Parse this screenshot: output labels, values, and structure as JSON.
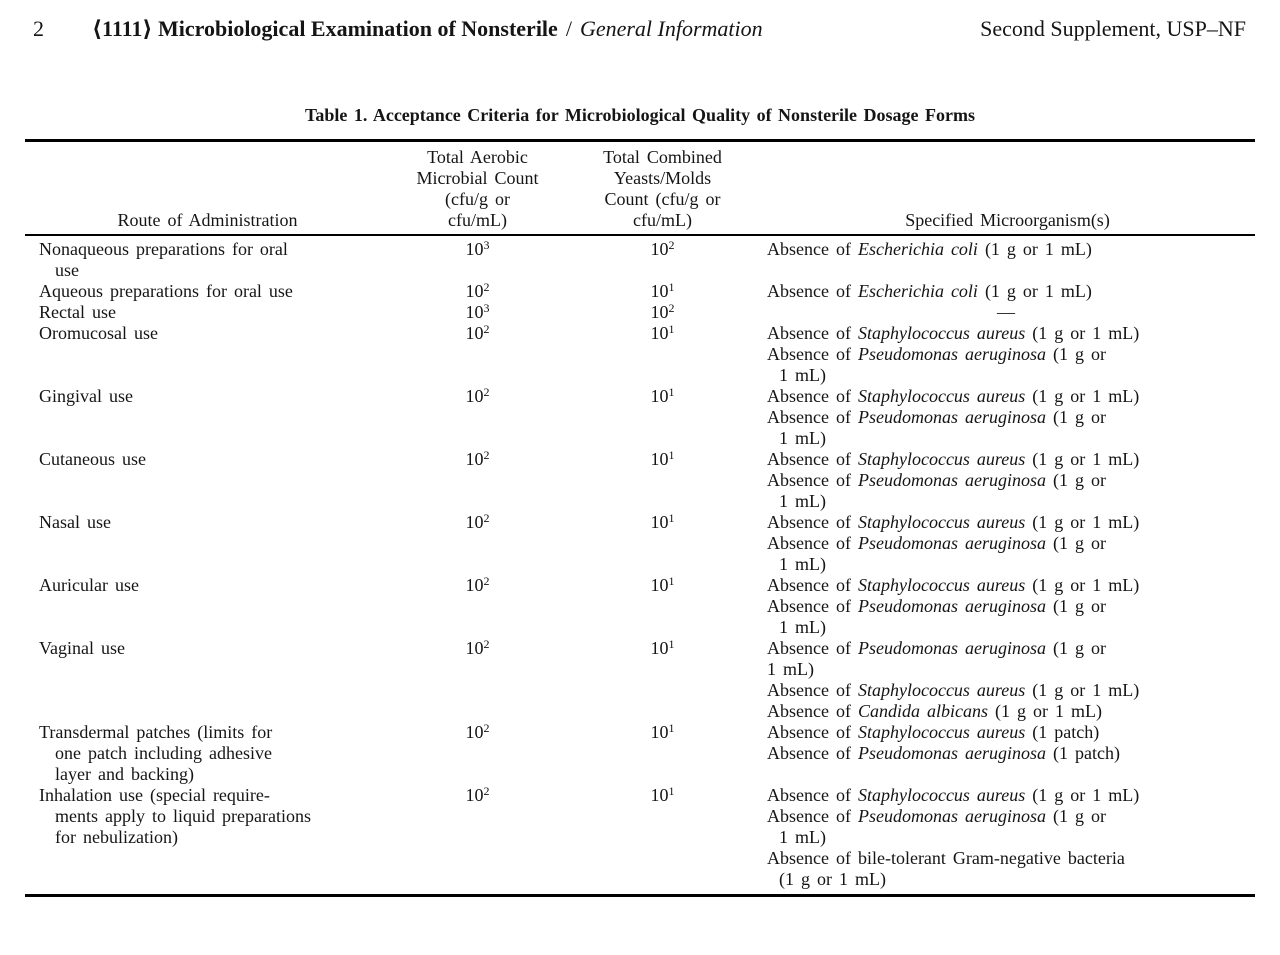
{
  "page_header": {
    "page_number": "2",
    "chapter_title": "⟨1111⟩ Microbiological Examination of Nonsterile",
    "separator": "/",
    "section": "General Information",
    "edition": "Second Supplement, USP–NF"
  },
  "table": {
    "title": "Table 1. Acceptance Criteria for Microbiological Quality of Nonsterile Dosage Forms",
    "columns": {
      "route": {
        "header_lines": [
          "Route of Administration"
        ]
      },
      "tamc": {
        "header_lines": [
          "Total Aerobic",
          "Microbial Count",
          "(cfu/g or",
          "cfu/mL)"
        ]
      },
      "tymc": {
        "header_lines": [
          "Total Combined",
          "Yeasts/Molds",
          "Count (cfu/g or",
          "cfu/mL)"
        ]
      },
      "organisms": {
        "header_lines": [
          "Specified Microorganism(s)"
        ]
      }
    },
    "rows": [
      {
        "route_lines": [
          "Nonaqueous preparations for oral",
          "use"
        ],
        "tamc": {
          "base": "10",
          "exp": "3"
        },
        "tymc": {
          "base": "10",
          "exp": "2"
        },
        "organism_lines": [
          {
            "indent": 0,
            "segments": [
              {
                "text": "Absence of "
              },
              {
                "text": "Escherichia coli",
                "italic": true
              },
              {
                "text": " (1 g or 1 mL)"
              }
            ]
          }
        ]
      },
      {
        "route_lines": [
          "Aqueous preparations for oral use"
        ],
        "tamc": {
          "base": "10",
          "exp": "2"
        },
        "tymc": {
          "base": "10",
          "exp": "1"
        },
        "organism_lines": [
          {
            "indent": 0,
            "segments": [
              {
                "text": "Absence of "
              },
              {
                "text": "Escherichia coli",
                "italic": true
              },
              {
                "text": " (1 g or 1 mL)"
              }
            ]
          }
        ]
      },
      {
        "route_lines": [
          "Rectal use"
        ],
        "tamc": {
          "base": "10",
          "exp": "3"
        },
        "tymc": {
          "base": "10",
          "exp": "2"
        },
        "organism_lines": [
          {
            "indent": 0,
            "center": true,
            "segments": [
              {
                "text": "—"
              }
            ]
          }
        ]
      },
      {
        "route_lines": [
          "Oromucosal use"
        ],
        "tamc": {
          "base": "10",
          "exp": "2"
        },
        "tymc": {
          "base": "10",
          "exp": "1"
        },
        "organism_lines": [
          {
            "indent": 0,
            "segments": [
              {
                "text": "Absence of "
              },
              {
                "text": "Staphylococcus aureus",
                "italic": true
              },
              {
                "text": " (1 g or 1 mL)"
              }
            ]
          },
          {
            "indent": 0,
            "segments": [
              {
                "text": "Absence of "
              },
              {
                "text": "Pseudomonas aeruginosa",
                "italic": true
              },
              {
                "text": " (1 g or"
              }
            ]
          },
          {
            "indent": 1,
            "segments": [
              {
                "text": "1 mL)"
              }
            ]
          }
        ]
      },
      {
        "route_lines": [
          "Gingival use"
        ],
        "tamc": {
          "base": "10",
          "exp": "2"
        },
        "tymc": {
          "base": "10",
          "exp": "1"
        },
        "organism_lines": [
          {
            "indent": 0,
            "segments": [
              {
                "text": "Absence of "
              },
              {
                "text": "Staphylococcus aureus",
                "italic": true
              },
              {
                "text": " (1 g or 1 mL)"
              }
            ]
          },
          {
            "indent": 0,
            "segments": [
              {
                "text": "Absence of "
              },
              {
                "text": "Pseudomonas aeruginosa",
                "italic": true
              },
              {
                "text": " (1 g or"
              }
            ]
          },
          {
            "indent": 1,
            "segments": [
              {
                "text": "1 mL)"
              }
            ]
          }
        ]
      },
      {
        "route_lines": [
          "Cutaneous use"
        ],
        "tamc": {
          "base": "10",
          "exp": "2"
        },
        "tymc": {
          "base": "10",
          "exp": "1"
        },
        "organism_lines": [
          {
            "indent": 0,
            "segments": [
              {
                "text": "Absence of "
              },
              {
                "text": "Staphylococcus aureus",
                "italic": true
              },
              {
                "text": " (1 g or 1 mL)"
              }
            ]
          },
          {
            "indent": 0,
            "segments": [
              {
                "text": "Absence of "
              },
              {
                "text": "Pseudomonas aeruginosa",
                "italic": true
              },
              {
                "text": " (1 g or"
              }
            ]
          },
          {
            "indent": 1,
            "segments": [
              {
                "text": "1 mL)"
              }
            ]
          }
        ]
      },
      {
        "route_lines": [
          "Nasal use"
        ],
        "tamc": {
          "base": "10",
          "exp": "2"
        },
        "tymc": {
          "base": "10",
          "exp": "1"
        },
        "organism_lines": [
          {
            "indent": 0,
            "segments": [
              {
                "text": "Absence of "
              },
              {
                "text": "Staphylococcus aureus",
                "italic": true
              },
              {
                "text": " (1 g or 1 mL)"
              }
            ]
          },
          {
            "indent": 0,
            "segments": [
              {
                "text": "Absence of "
              },
              {
                "text": "Pseudomonas aeruginosa",
                "italic": true
              },
              {
                "text": " (1 g or"
              }
            ]
          },
          {
            "indent": 1,
            "segments": [
              {
                "text": "1 mL)"
              }
            ]
          }
        ]
      },
      {
        "route_lines": [
          "Auricular use"
        ],
        "tamc": {
          "base": "10",
          "exp": "2"
        },
        "tymc": {
          "base": "10",
          "exp": "1"
        },
        "organism_lines": [
          {
            "indent": 0,
            "segments": [
              {
                "text": "Absence of "
              },
              {
                "text": "Staphylococcus aureus",
                "italic": true
              },
              {
                "text": " (1 g or 1 mL)"
              }
            ]
          },
          {
            "indent": 0,
            "segments": [
              {
                "text": "Absence of "
              },
              {
                "text": "Pseudomonas aeruginosa",
                "italic": true
              },
              {
                "text": " (1 g or"
              }
            ]
          },
          {
            "indent": 1,
            "segments": [
              {
                "text": "1 mL)"
              }
            ]
          }
        ]
      },
      {
        "route_lines": [
          "Vaginal use"
        ],
        "tamc": {
          "base": "10",
          "exp": "2"
        },
        "tymc": {
          "base": "10",
          "exp": "1"
        },
        "organism_lines": [
          {
            "indent": 0,
            "segments": [
              {
                "text": "Absence of "
              },
              {
                "text": "Pseudomonas aeruginosa",
                "italic": true
              },
              {
                "text": " (1 g or"
              }
            ]
          },
          {
            "indent": 0,
            "segments": [
              {
                "text": "1 mL)"
              }
            ]
          },
          {
            "indent": 0,
            "segments": [
              {
                "text": "Absence of "
              },
              {
                "text": "Staphylococcus aureus",
                "italic": true
              },
              {
                "text": " (1 g or 1 mL)"
              }
            ]
          },
          {
            "indent": 0,
            "segments": [
              {
                "text": "Absence of "
              },
              {
                "text": "Candida albicans",
                "italic": true
              },
              {
                "text": " (1 g or 1 mL)"
              }
            ]
          }
        ]
      },
      {
        "route_lines": [
          "Transdermal patches (limits for",
          "one patch including adhesive",
          "layer and backing)"
        ],
        "tamc": {
          "base": "10",
          "exp": "2"
        },
        "tymc": {
          "base": "10",
          "exp": "1"
        },
        "organism_lines": [
          {
            "indent": 0,
            "segments": [
              {
                "text": "Absence of "
              },
              {
                "text": "Staphylococcus aureus",
                "italic": true
              },
              {
                "text": " (1 patch)"
              }
            ]
          },
          {
            "indent": 0,
            "segments": [
              {
                "text": "Absence of "
              },
              {
                "text": "Pseudomonas aeruginosa",
                "italic": true
              },
              {
                "text": " (1 patch)"
              }
            ]
          }
        ]
      },
      {
        "route_lines": [
          "Inhalation use (special require-",
          "ments apply to liquid preparations",
          "for nebulization)"
        ],
        "tamc": {
          "base": "10",
          "exp": "2"
        },
        "tymc": {
          "base": "10",
          "exp": "1"
        },
        "organism_lines": [
          {
            "indent": 0,
            "segments": [
              {
                "text": "Absence of "
              },
              {
                "text": "Staphylococcus aureus",
                "italic": true
              },
              {
                "text": " (1 g or 1 mL)"
              }
            ]
          },
          {
            "indent": 0,
            "segments": [
              {
                "text": "Absence of "
              },
              {
                "text": "Pseudomonas aeruginosa",
                "italic": true
              },
              {
                "text": " (1 g or"
              }
            ]
          },
          {
            "indent": 1,
            "segments": [
              {
                "text": "1 mL)"
              }
            ]
          },
          {
            "indent": 0,
            "segments": [
              {
                "text": "Absence of bile-tolerant Gram-negative bacteria"
              }
            ]
          },
          {
            "indent": 1,
            "segments": [
              {
                "text": "(1 g or 1 mL)"
              }
            ]
          }
        ]
      }
    ]
  }
}
